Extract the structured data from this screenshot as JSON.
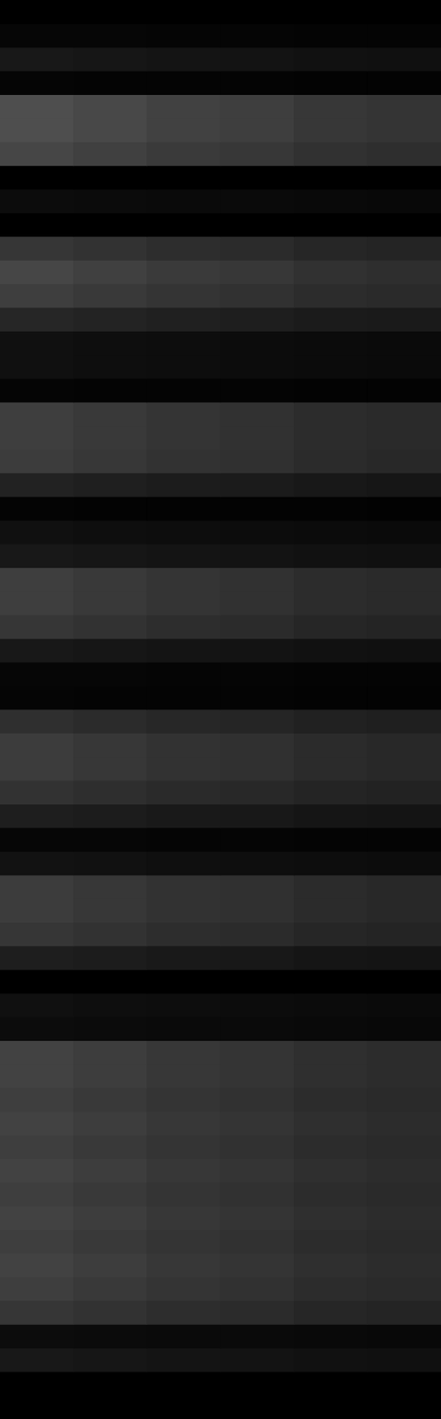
{
  "chart_data": {
    "type": "heatmap",
    "cells": [
      [
        0,
        0,
        0,
        0,
        0,
        0
      ],
      [
        6,
        6,
        5,
        5,
        4,
        4
      ],
      [
        24,
        22,
        20,
        19,
        17,
        16
      ],
      [
        5,
        4,
        4,
        4,
        3,
        3
      ],
      [
        78,
        72,
        65,
        62,
        55,
        52
      ],
      [
        78,
        72,
        65,
        62,
        55,
        52
      ],
      [
        70,
        64,
        58,
        55,
        49,
        46
      ],
      [
        0,
        0,
        0,
        0,
        0,
        0
      ],
      [
        12,
        11,
        10,
        10,
        9,
        8
      ],
      [
        0,
        0,
        0,
        0,
        0,
        0
      ],
      [
        54,
        50,
        45,
        43,
        38,
        36
      ],
      [
        70,
        64,
        58,
        55,
        49,
        46
      ],
      [
        62,
        57,
        52,
        49,
        44,
        42
      ],
      [
        38,
        35,
        32,
        30,
        27,
        26
      ],
      [
        16,
        14,
        13,
        12,
        11,
        10
      ],
      [
        16,
        14,
        13,
        12,
        11,
        10
      ],
      [
        5,
        4,
        4,
        4,
        3,
        3
      ],
      [
        62,
        57,
        52,
        49,
        44,
        42
      ],
      [
        62,
        57,
        52,
        49,
        44,
        42
      ],
      [
        60,
        55,
        50,
        48,
        43,
        40
      ],
      [
        34,
        31,
        28,
        27,
        24,
        22
      ],
      [
        4,
        3,
        3,
        3,
        3,
        2
      ],
      [
        16,
        14,
        13,
        12,
        11,
        10
      ],
      [
        24,
        22,
        20,
        19,
        17,
        16
      ],
      [
        62,
        57,
        52,
        49,
        44,
        42
      ],
      [
        62,
        57,
        52,
        49,
        44,
        42
      ],
      [
        54,
        50,
        45,
        43,
        38,
        36
      ],
      [
        24,
        22,
        20,
        19,
        17,
        16
      ],
      [
        6,
        6,
        5,
        5,
        4,
        4
      ],
      [
        5,
        4,
        4,
        4,
        3,
        3
      ],
      [
        47,
        43,
        39,
        37,
        33,
        31
      ],
      [
        60,
        55,
        50,
        48,
        43,
        40
      ],
      [
        60,
        55,
        50,
        48,
        43,
        40
      ],
      [
        50,
        46,
        42,
        40,
        36,
        34
      ],
      [
        30,
        28,
        25,
        24,
        21,
        20
      ],
      [
        6,
        6,
        5,
        5,
        4,
        4
      ],
      [
        18,
        17,
        15,
        14,
        13,
        12
      ],
      [
        60,
        55,
        50,
        48,
        43,
        40
      ],
      [
        60,
        55,
        50,
        48,
        43,
        40
      ],
      [
        54,
        50,
        45,
        43,
        38,
        36
      ],
      [
        30,
        28,
        25,
        24,
        21,
        20
      ],
      [
        0,
        0,
        0,
        0,
        0,
        0
      ],
      [
        16,
        14,
        13,
        12,
        11,
        10
      ],
      [
        12,
        11,
        10,
        10,
        9,
        8
      ],
      [
        66,
        61,
        55,
        52,
        47,
        44
      ],
      [
        66,
        61,
        55,
        52,
        47,
        44
      ],
      [
        62,
        57,
        52,
        49,
        44,
        42
      ],
      [
        66,
        61,
        55,
        52,
        47,
        44
      ],
      [
        62,
        57,
        52,
        49,
        44,
        42
      ],
      [
        66,
        61,
        55,
        52,
        47,
        44
      ],
      [
        62,
        57,
        52,
        49,
        44,
        42
      ],
      [
        66,
        61,
        55,
        52,
        47,
        44
      ],
      [
        62,
        57,
        52,
        49,
        44,
        42
      ],
      [
        66,
        61,
        55,
        52,
        47,
        44
      ],
      [
        62,
        57,
        52,
        49,
        44,
        42
      ],
      [
        54,
        50,
        45,
        43,
        38,
        36
      ],
      [
        12,
        11,
        10,
        10,
        9,
        8
      ],
      [
        24,
        22,
        20,
        19,
        17,
        16
      ],
      [
        0,
        0,
        0,
        0,
        0,
        0
      ],
      [
        0,
        0,
        0,
        0,
        0,
        0
      ]
    ],
    "tick_labels": false,
    "grid": false
  }
}
